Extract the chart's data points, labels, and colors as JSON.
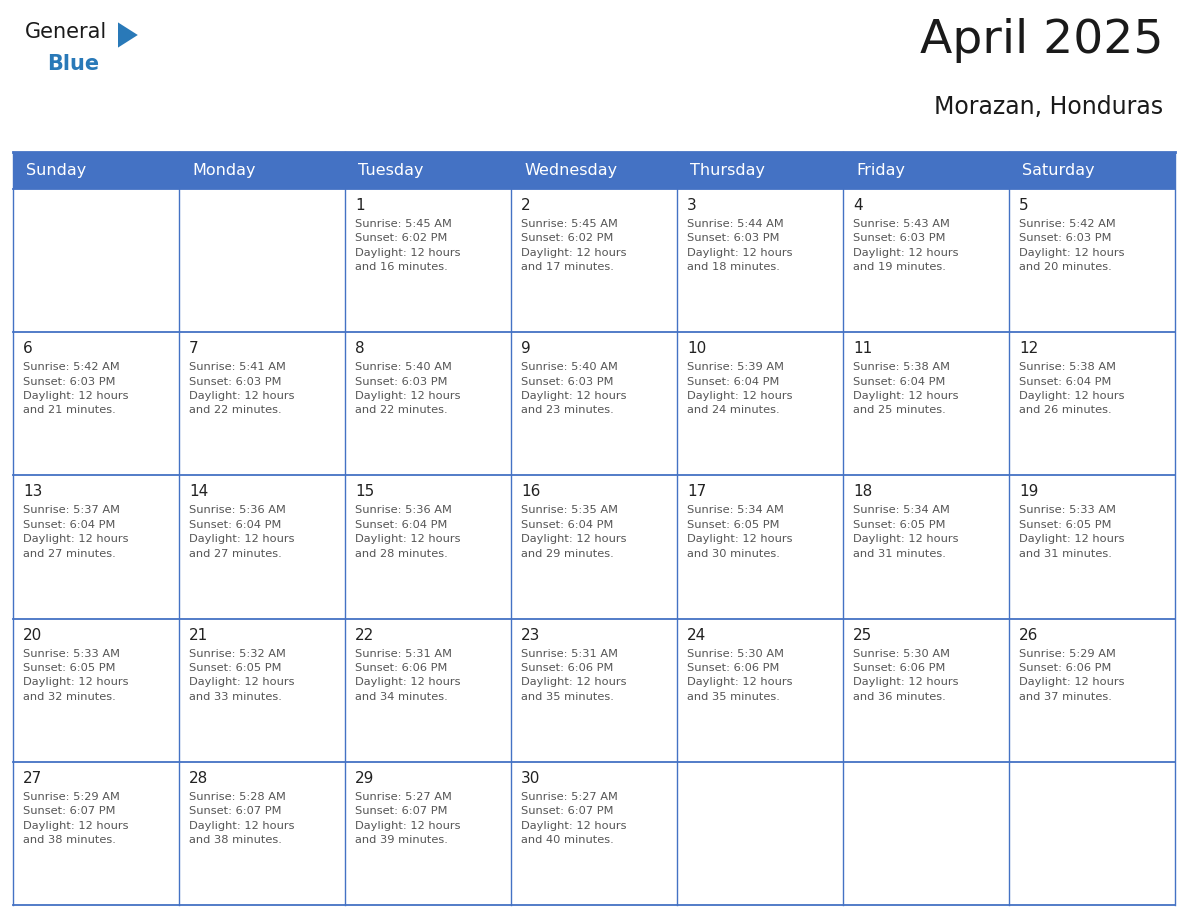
{
  "title": "April 2025",
  "subtitle": "Morazan, Honduras",
  "days_of_week": [
    "Sunday",
    "Monday",
    "Tuesday",
    "Wednesday",
    "Thursday",
    "Friday",
    "Saturday"
  ],
  "header_bg": "#4472C4",
  "header_fg": "#FFFFFF",
  "cell_bg": "#FFFFFF",
  "border_color": "#4472C4",
  "text_color": "#555555",
  "day_num_color": "#222222",
  "calendar": [
    [
      {
        "day": null,
        "info": null
      },
      {
        "day": null,
        "info": null
      },
      {
        "day": 1,
        "info": "Sunrise: 5:45 AM\nSunset: 6:02 PM\nDaylight: 12 hours\nand 16 minutes."
      },
      {
        "day": 2,
        "info": "Sunrise: 5:45 AM\nSunset: 6:02 PM\nDaylight: 12 hours\nand 17 minutes."
      },
      {
        "day": 3,
        "info": "Sunrise: 5:44 AM\nSunset: 6:03 PM\nDaylight: 12 hours\nand 18 minutes."
      },
      {
        "day": 4,
        "info": "Sunrise: 5:43 AM\nSunset: 6:03 PM\nDaylight: 12 hours\nand 19 minutes."
      },
      {
        "day": 5,
        "info": "Sunrise: 5:42 AM\nSunset: 6:03 PM\nDaylight: 12 hours\nand 20 minutes."
      }
    ],
    [
      {
        "day": 6,
        "info": "Sunrise: 5:42 AM\nSunset: 6:03 PM\nDaylight: 12 hours\nand 21 minutes."
      },
      {
        "day": 7,
        "info": "Sunrise: 5:41 AM\nSunset: 6:03 PM\nDaylight: 12 hours\nand 22 minutes."
      },
      {
        "day": 8,
        "info": "Sunrise: 5:40 AM\nSunset: 6:03 PM\nDaylight: 12 hours\nand 22 minutes."
      },
      {
        "day": 9,
        "info": "Sunrise: 5:40 AM\nSunset: 6:03 PM\nDaylight: 12 hours\nand 23 minutes."
      },
      {
        "day": 10,
        "info": "Sunrise: 5:39 AM\nSunset: 6:04 PM\nDaylight: 12 hours\nand 24 minutes."
      },
      {
        "day": 11,
        "info": "Sunrise: 5:38 AM\nSunset: 6:04 PM\nDaylight: 12 hours\nand 25 minutes."
      },
      {
        "day": 12,
        "info": "Sunrise: 5:38 AM\nSunset: 6:04 PM\nDaylight: 12 hours\nand 26 minutes."
      }
    ],
    [
      {
        "day": 13,
        "info": "Sunrise: 5:37 AM\nSunset: 6:04 PM\nDaylight: 12 hours\nand 27 minutes."
      },
      {
        "day": 14,
        "info": "Sunrise: 5:36 AM\nSunset: 6:04 PM\nDaylight: 12 hours\nand 27 minutes."
      },
      {
        "day": 15,
        "info": "Sunrise: 5:36 AM\nSunset: 6:04 PM\nDaylight: 12 hours\nand 28 minutes."
      },
      {
        "day": 16,
        "info": "Sunrise: 5:35 AM\nSunset: 6:04 PM\nDaylight: 12 hours\nand 29 minutes."
      },
      {
        "day": 17,
        "info": "Sunrise: 5:34 AM\nSunset: 6:05 PM\nDaylight: 12 hours\nand 30 minutes."
      },
      {
        "day": 18,
        "info": "Sunrise: 5:34 AM\nSunset: 6:05 PM\nDaylight: 12 hours\nand 31 minutes."
      },
      {
        "day": 19,
        "info": "Sunrise: 5:33 AM\nSunset: 6:05 PM\nDaylight: 12 hours\nand 31 minutes."
      }
    ],
    [
      {
        "day": 20,
        "info": "Sunrise: 5:33 AM\nSunset: 6:05 PM\nDaylight: 12 hours\nand 32 minutes."
      },
      {
        "day": 21,
        "info": "Sunrise: 5:32 AM\nSunset: 6:05 PM\nDaylight: 12 hours\nand 33 minutes."
      },
      {
        "day": 22,
        "info": "Sunrise: 5:31 AM\nSunset: 6:06 PM\nDaylight: 12 hours\nand 34 minutes."
      },
      {
        "day": 23,
        "info": "Sunrise: 5:31 AM\nSunset: 6:06 PM\nDaylight: 12 hours\nand 35 minutes."
      },
      {
        "day": 24,
        "info": "Sunrise: 5:30 AM\nSunset: 6:06 PM\nDaylight: 12 hours\nand 35 minutes."
      },
      {
        "day": 25,
        "info": "Sunrise: 5:30 AM\nSunset: 6:06 PM\nDaylight: 12 hours\nand 36 minutes."
      },
      {
        "day": 26,
        "info": "Sunrise: 5:29 AM\nSunset: 6:06 PM\nDaylight: 12 hours\nand 37 minutes."
      }
    ],
    [
      {
        "day": 27,
        "info": "Sunrise: 5:29 AM\nSunset: 6:07 PM\nDaylight: 12 hours\nand 38 minutes."
      },
      {
        "day": 28,
        "info": "Sunrise: 5:28 AM\nSunset: 6:07 PM\nDaylight: 12 hours\nand 38 minutes."
      },
      {
        "day": 29,
        "info": "Sunrise: 5:27 AM\nSunset: 6:07 PM\nDaylight: 12 hours\nand 39 minutes."
      },
      {
        "day": 30,
        "info": "Sunrise: 5:27 AM\nSunset: 6:07 PM\nDaylight: 12 hours\nand 40 minutes."
      },
      {
        "day": null,
        "info": null
      },
      {
        "day": null,
        "info": null
      },
      {
        "day": null,
        "info": null
      }
    ]
  ],
  "logo_color_general": "#1a1a1a",
  "logo_color_blue": "#2979b8",
  "logo_triangle_color": "#2979b8"
}
